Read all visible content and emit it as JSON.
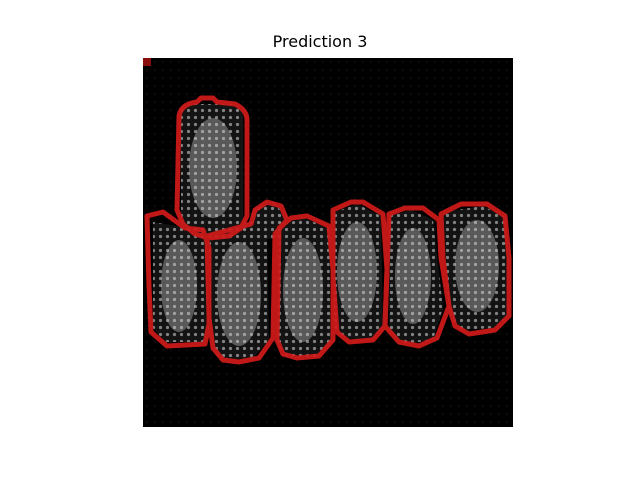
{
  "figure": {
    "title": "Prediction 3"
  },
  "colors": {
    "background": "#000000",
    "cell": "#bdbdbd",
    "prediction_outline": "#d11a1a"
  }
}
